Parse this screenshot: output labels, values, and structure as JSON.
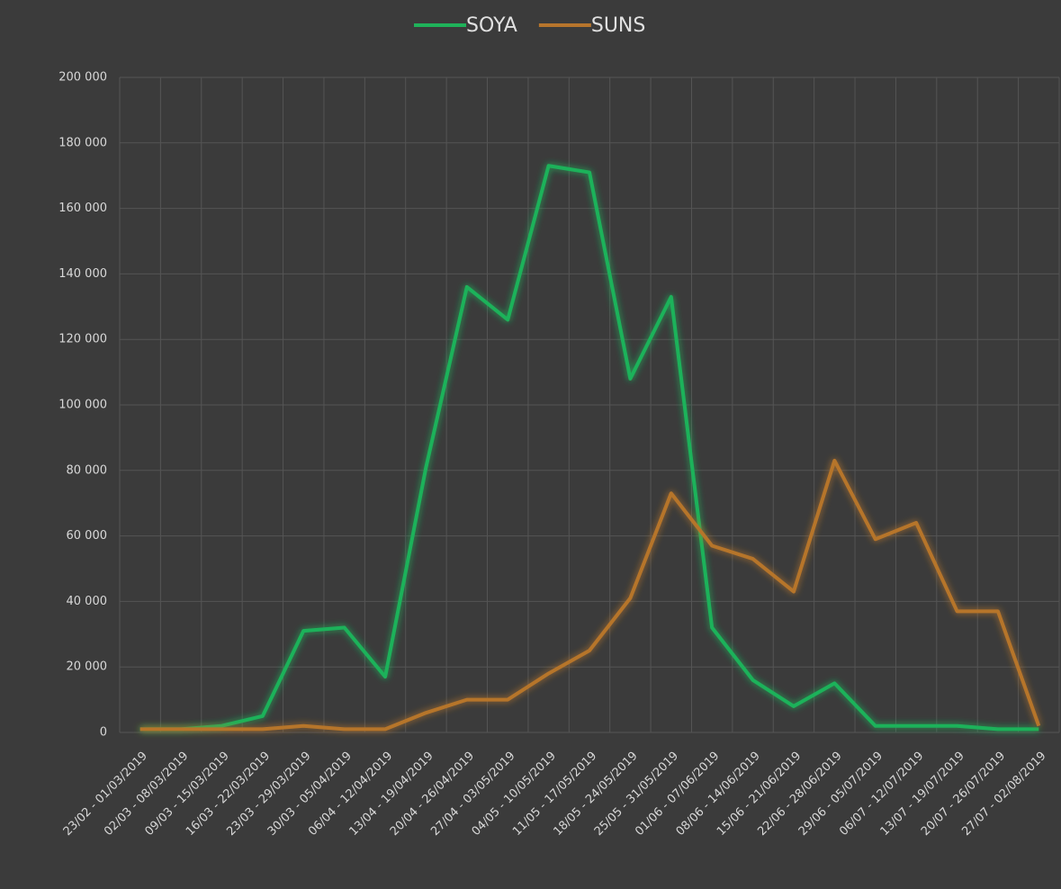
{
  "chart_data": {
    "type": "line",
    "categories": [
      "23/02 - 01/03/2019",
      "02/03 - 08/03/2019",
      "09/03 - 15/03/2019",
      "16/03 - 22/03/2019",
      "23/03 - 29/03/2019",
      "30/03 - 05/04/2019",
      "06/04 - 12/04/2019",
      "13/04 - 19/04/2019",
      "20/04 - 26/04/2019",
      "27/04 - 03/05/2019",
      "04/05 - 10/05/2019",
      "11/05 - 17/05/2019",
      "18/05 - 24/05/2019",
      "25/05 - 31/05/2019",
      "01/06 - 07/06/2019",
      "08/06 - 14/06/2019",
      "15/06 - 21/06/2019",
      "22/06 - 28/06/2019",
      "29/06 - 05/07/2019",
      "06/07 - 12/07/2019",
      "13/07 - 19/07/2019",
      "20/07 - 26/07/2019",
      "27/07 - 02/08/2019"
    ],
    "series": [
      {
        "name": "SOYA",
        "color": "#1fb25a",
        "values": [
          1000,
          1000,
          2000,
          5000,
          31000,
          32000,
          17000,
          81000,
          136000,
          126000,
          173000,
          171000,
          108000,
          133000,
          32000,
          16000,
          8000,
          15000,
          2000,
          2000,
          2000,
          1000,
          1000
        ]
      },
      {
        "name": "SUNS",
        "color": "#b6752c",
        "values": [
          1000,
          1000,
          1000,
          1000,
          2000,
          1000,
          1000,
          6000,
          10000,
          10000,
          18000,
          25000,
          41000,
          73000,
          57000,
          53000,
          43000,
          83000,
          59000,
          64000,
          37000,
          37000,
          2000
        ]
      }
    ],
    "ylim": [
      0,
      200000
    ],
    "yticks": [
      0,
      {
        "value": 20000,
        "label": "20 000"
      },
      {
        "value": 40000,
        "label": "40 000"
      },
      {
        "value": 60000,
        "label": "60 000"
      },
      {
        "value": 80000,
        "label": "80 000"
      },
      {
        "value": 100000,
        "label": "100 000"
      },
      {
        "value": 120000,
        "label": "120 000"
      },
      {
        "value": 140000,
        "label": "140 000"
      },
      {
        "value": 160000,
        "label": "160 000"
      },
      {
        "value": 180000,
        "label": "180 000"
      },
      {
        "value": 200000,
        "label": "200 000"
      }
    ],
    "grid": true,
    "legend": "top"
  }
}
